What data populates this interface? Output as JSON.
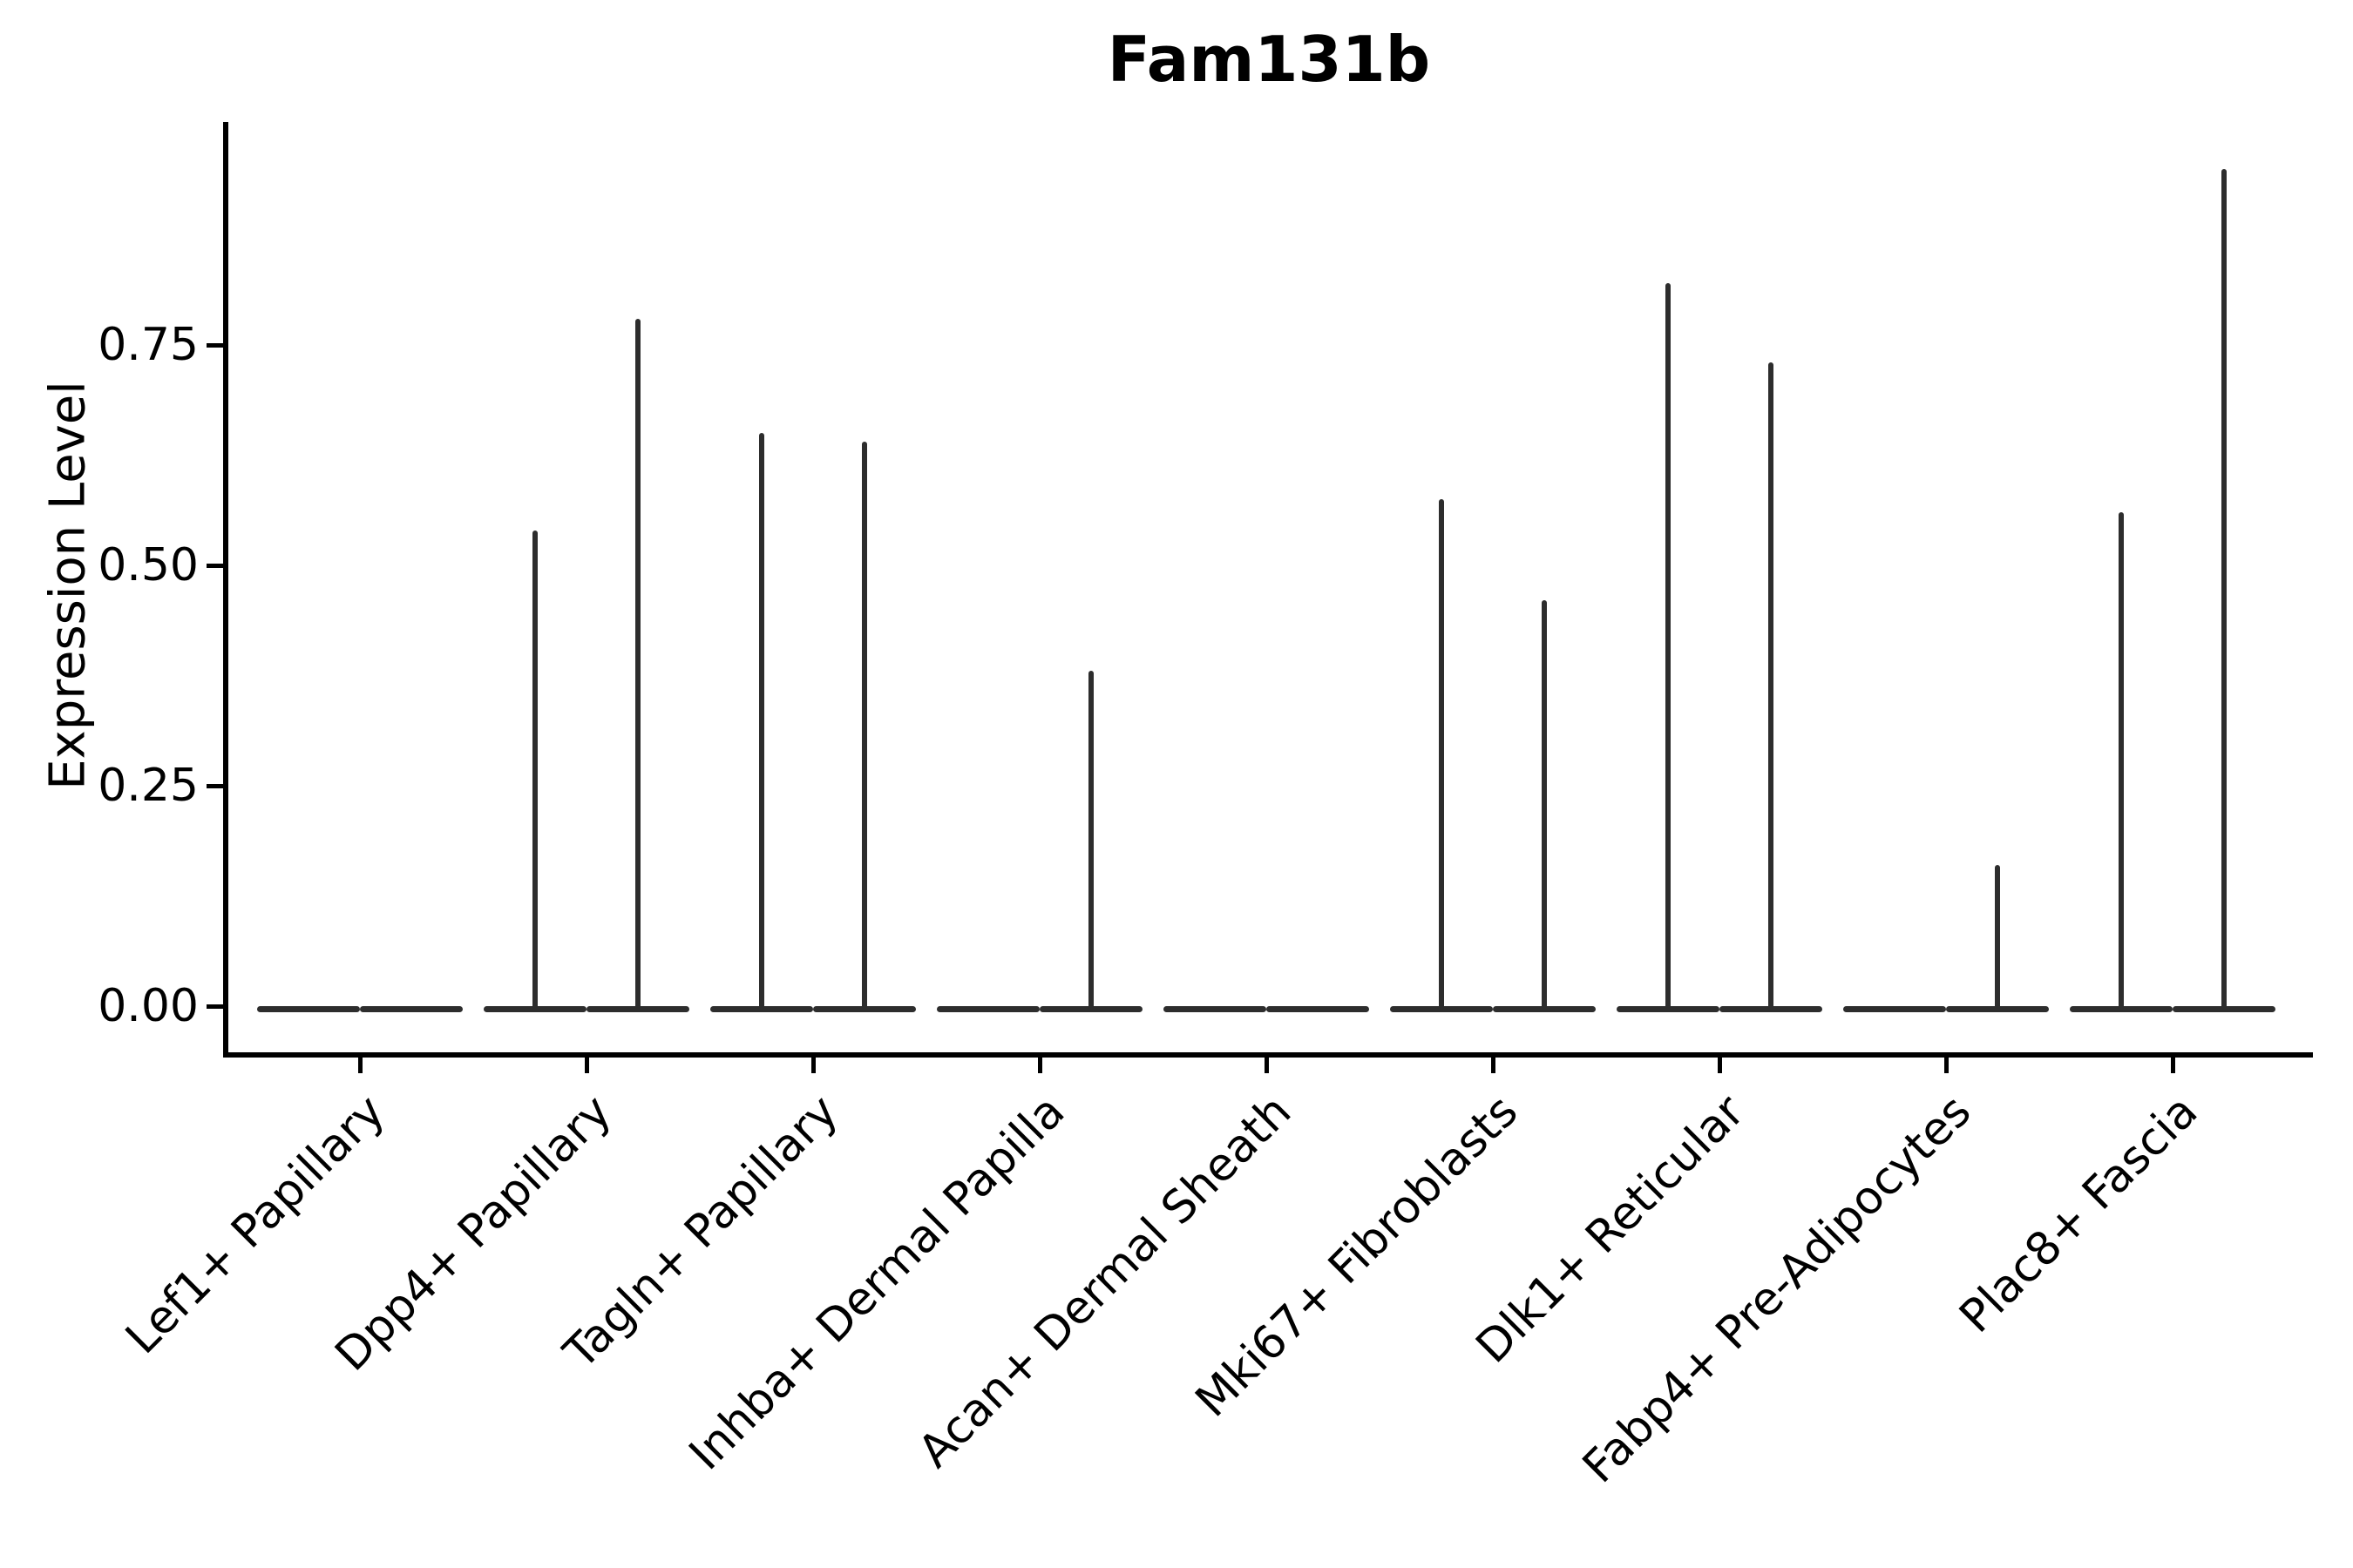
{
  "chart_data": {
    "type": "violin",
    "title": "Fam131b",
    "ylabel": "Expression Level",
    "xlabel": "",
    "categories": [
      "Lef1+ Papillary",
      "Dpp4+ Papillary",
      "Tagln+ Papillary",
      "Inhba+ Dermal Papilla",
      "Acan+ Dermal Sheath",
      "Mki67+ Fibroblasts",
      "Dlk1+ Reticular",
      "Fabp4+ Pre-Adipocytes",
      "Plac8+ Fascia"
    ],
    "series": [
      {
        "name": "left-violin-peak-expression",
        "values": [
          0,
          0.54,
          0.65,
          0,
          0,
          0.575,
          0.82,
          0,
          0.56
        ]
      },
      {
        "name": "right-violin-peak-expression",
        "values": [
          0,
          0.78,
          0.64,
          0.38,
          0,
          0.46,
          0.73,
          0.16,
          0.95
        ]
      }
    ],
    "yticks": {
      "values": [
        0,
        0.25,
        0.5,
        0.75
      ],
      "labels": [
        "0.00",
        "0.25",
        "0.50",
        "0.75"
      ]
    },
    "ylim": [
      0,
      1.0
    ],
    "grid": false,
    "legend": "none",
    "violin_color": "#2d2d2d",
    "axis_color": "#000000",
    "background_color": "#ffffff"
  }
}
